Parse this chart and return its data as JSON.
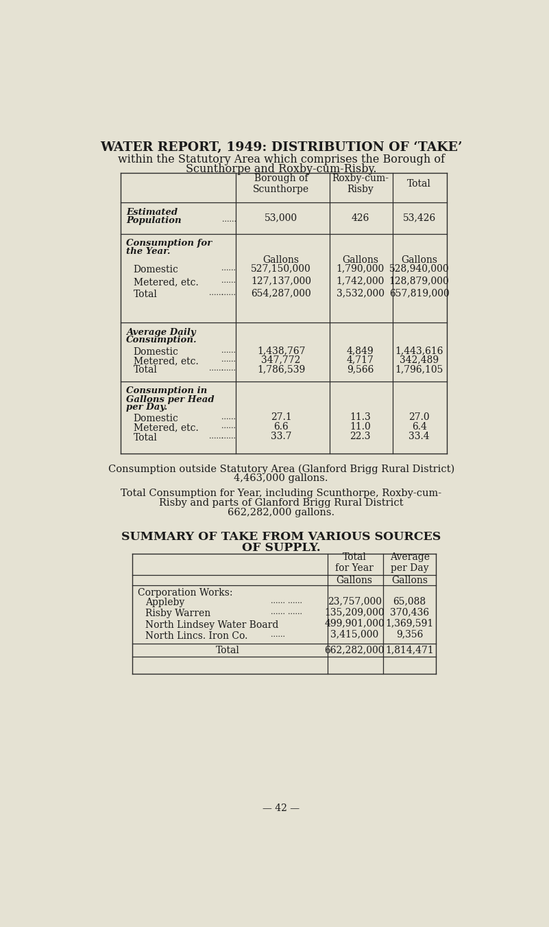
{
  "bg_color": "#e5e2d3",
  "title_line1": "WATER REPORT, 1949: DISTRIBUTION OF ‘TAKE’",
  "title_line2": "within the Statutory Area which comprises the Borough of",
  "title_line3": "Scunthorpe and Roxby-cum-Risby.",
  "outside_text1": "Consumption outside Statutory Area (Glanford Brigg Rural District)",
  "outside_text2": "4,463,000 gallons.",
  "total_text1": "Total Consumption for Year, including Scunthorpe, Roxby-cum-",
  "total_text2": "Risby and parts of Glanford Brigg Rural District",
  "total_text3": "662,282,000 gallons.",
  "summary_title1": "SUMMARY OF TAKE FROM VARIOUS SOURCES",
  "summary_title2": "OF SUPPLY.",
  "page_number": "— 42 —"
}
